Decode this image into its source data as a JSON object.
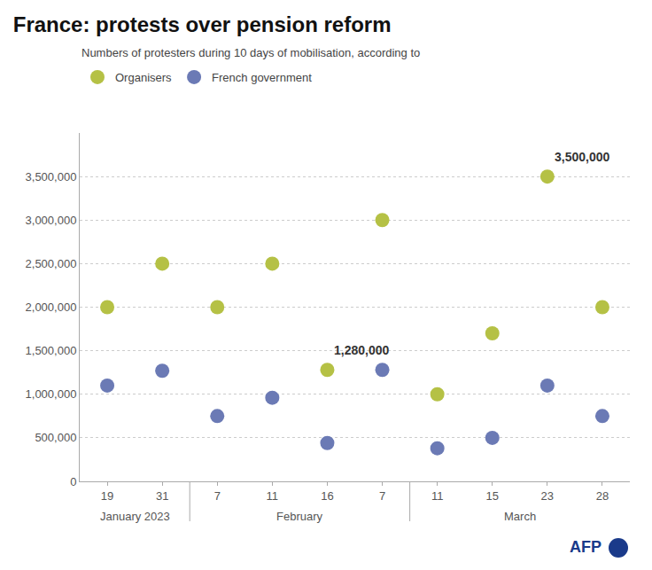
{
  "chart_data": {
    "type": "scatter",
    "title": "France: protests over pension reform",
    "subtitle": "Numbers of protesters during 10 days of mobilisation, according to",
    "categories": [
      "19",
      "31",
      "7",
      "11",
      "16",
      "7",
      "11",
      "15",
      "23",
      "28"
    ],
    "x_groups": [
      {
        "label": "January 2023",
        "from": 0,
        "to": 1
      },
      {
        "label": "February",
        "from": 2,
        "to": 5
      },
      {
        "label": "March",
        "from": 6,
        "to": 9
      }
    ],
    "series": [
      {
        "name": "Organisers",
        "color": "#b5c145",
        "marker": "circle",
        "values": [
          2000000,
          2500000,
          2000000,
          2500000,
          1280000,
          3000000,
          1000000,
          1700000,
          3500000,
          2000000
        ]
      },
      {
        "name": "French government",
        "color": "#6b7ab5",
        "marker": "circle",
        "values": [
          1100000,
          1270000,
          750000,
          960000,
          440000,
          1280000,
          380000,
          500000,
          1100000,
          750000
        ]
      }
    ],
    "annotations": [
      {
        "x": 4,
        "y": 1280000,
        "text": "1,280,000"
      },
      {
        "x": 8,
        "y": 3500000,
        "text": "3,500,000"
      }
    ],
    "credit": "AFP",
    "ylim": [
      0,
      4000000
    ],
    "yticks": [
      0,
      {
        "value": 500000,
        "label": "500,000"
      },
      {
        "value": 1000000,
        "label": "1,000,000"
      },
      {
        "value": 1500000,
        "label": "1,500,000"
      },
      {
        "value": 2000000,
        "label": "2,000,000"
      },
      {
        "value": 2500000,
        "label": "2,500,000"
      },
      {
        "value": 3000000,
        "label": "3,000,000"
      },
      {
        "value": 3500000,
        "label": "3,500,000"
      }
    ],
    "grid": true,
    "legend": "top left"
  }
}
